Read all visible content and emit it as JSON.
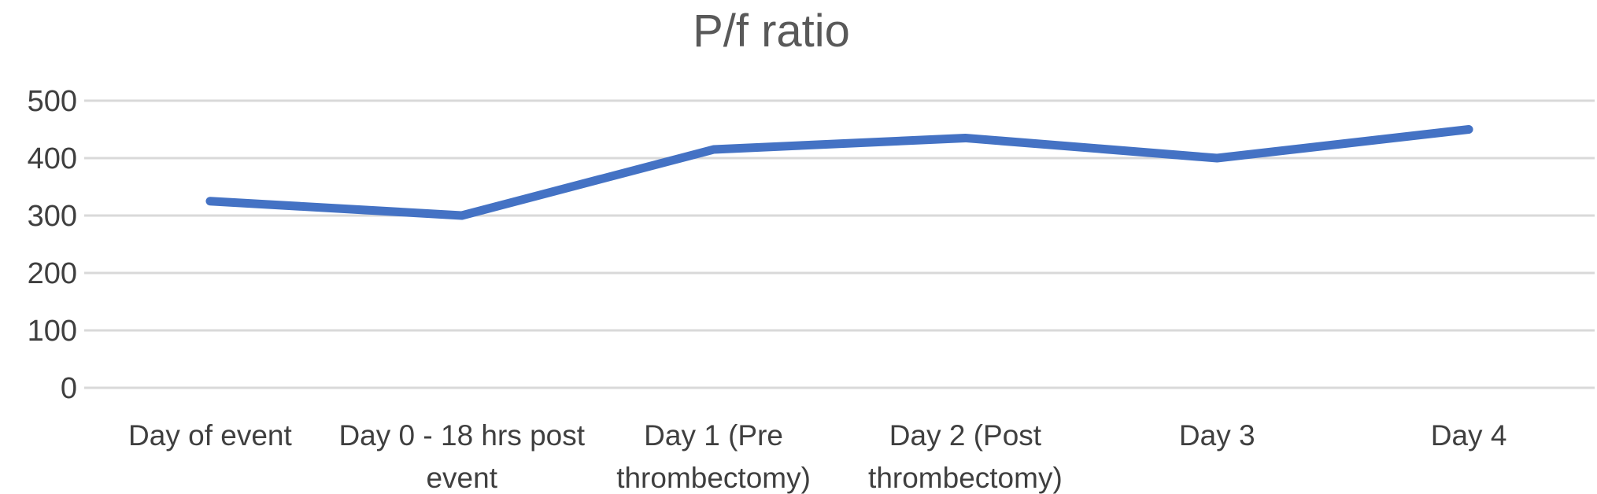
{
  "chart_data": {
    "type": "line",
    "title": "P/f ratio",
    "categories": [
      "Day of event",
      "Day 0 - 18 hrs post event",
      "Day 1 (Pre thrombectomy)",
      "Day 2 (Post thrombectomy)",
      "Day 3",
      "Day 4"
    ],
    "category_label_lines": [
      [
        "Day of event"
      ],
      [
        "Day 0 - 18 hrs post",
        "event"
      ],
      [
        "Day 1 (Pre",
        "thrombectomy)"
      ],
      [
        "Day 2 (Post",
        "thrombectomy)"
      ],
      [
        "Day 3"
      ],
      [
        "Day 4"
      ]
    ],
    "series": [
      {
        "name": "P/f ratio",
        "values": [
          325,
          300,
          415,
          435,
          400,
          450
        ]
      }
    ],
    "xlabel": "",
    "ylabel": "",
    "ylim": [
      0,
      500
    ],
    "yticks": [
      0,
      100,
      200,
      300,
      400,
      500
    ],
    "grid": true,
    "legend_position": "none",
    "colors": {
      "line": "#4472C4",
      "gridline": "#D9D9D9",
      "title_text": "#595959",
      "axis_text": "#3F3F3F",
      "background": "#FFFFFF"
    }
  }
}
